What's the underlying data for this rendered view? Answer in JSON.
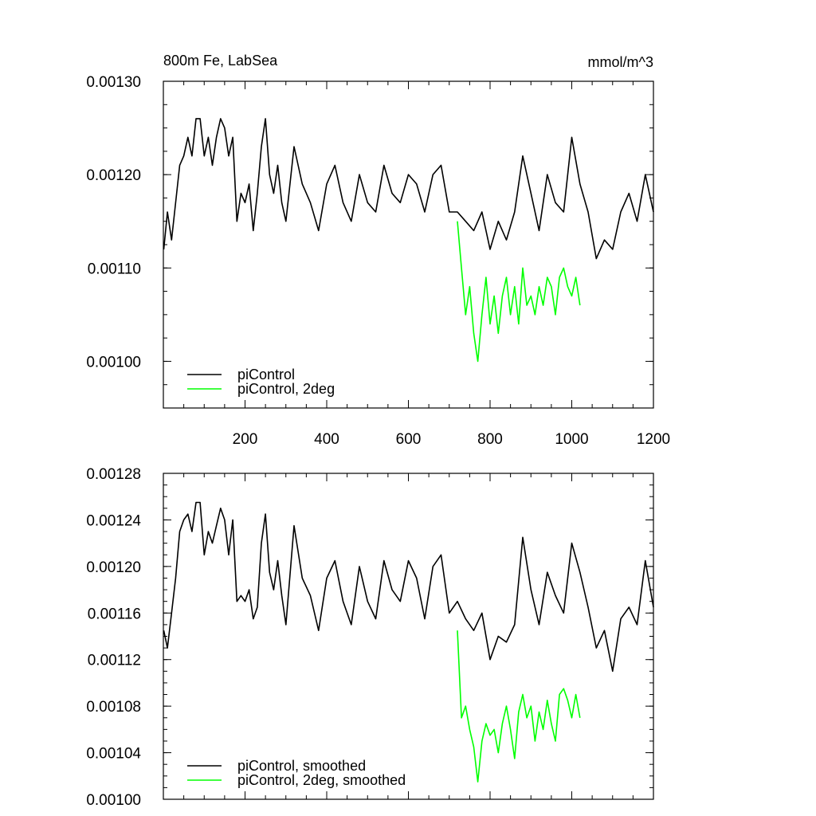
{
  "colors": {
    "control": "#000000",
    "twodeg": "#00ff00"
  },
  "chart_data": [
    {
      "type": "line",
      "title": "800m Fe, LabSea",
      "units": "mmol/m^3",
      "xlim": [
        0,
        1200
      ],
      "ylim": [
        0.00095,
        0.0013
      ],
      "x_ticks": [
        200,
        400,
        600,
        800,
        1000,
        1200
      ],
      "x_tick_labels": [
        "200",
        "400",
        "600",
        "800",
        "1000",
        "1200"
      ],
      "y_ticks": [
        0.001,
        0.0011,
        0.0012,
        0.0013
      ],
      "y_tick_labels": [
        "0.00100",
        "0.00110",
        "0.00120",
        "0.00130"
      ],
      "legend_position": "bottom-left",
      "series": [
        {
          "name": "piControl",
          "color": "#000000",
          "x": [
            1,
            10,
            20,
            30,
            40,
            50,
            60,
            70,
            80,
            90,
            100,
            110,
            120,
            130,
            140,
            150,
            160,
            170,
            180,
            190,
            200,
            210,
            220,
            230,
            240,
            250,
            260,
            270,
            280,
            290,
            300,
            320,
            340,
            360,
            380,
            400,
            420,
            440,
            460,
            480,
            500,
            520,
            540,
            560,
            580,
            600,
            620,
            640,
            660,
            680,
            700,
            720,
            740,
            760,
            780,
            800,
            820,
            840,
            860,
            880,
            900,
            920,
            940,
            960,
            980,
            1000,
            1020,
            1040,
            1060,
            1080,
            1100,
            1120,
            1140,
            1160,
            1180,
            1200
          ],
          "y": [
            0.00112,
            0.00116,
            0.00113,
            0.00117,
            0.00121,
            0.00122,
            0.00124,
            0.00122,
            0.00126,
            0.00126,
            0.00122,
            0.00124,
            0.00121,
            0.00124,
            0.00126,
            0.00125,
            0.00122,
            0.00124,
            0.00115,
            0.00118,
            0.00117,
            0.00119,
            0.00114,
            0.00118,
            0.00123,
            0.00126,
            0.0012,
            0.00118,
            0.00121,
            0.00117,
            0.00115,
            0.00123,
            0.00119,
            0.00117,
            0.00114,
            0.00119,
            0.00121,
            0.00117,
            0.00115,
            0.0012,
            0.00117,
            0.00116,
            0.00121,
            0.00118,
            0.00117,
            0.0012,
            0.00119,
            0.00116,
            0.0012,
            0.00121,
            0.00116,
            0.00116,
            0.00115,
            0.00114,
            0.00116,
            0.00112,
            0.00115,
            0.00113,
            0.00116,
            0.00122,
            0.00118,
            0.00114,
            0.0012,
            0.00117,
            0.00116,
            0.00124,
            0.00119,
            0.00116,
            0.00111,
            0.00113,
            0.00112,
            0.00116,
            0.00118,
            0.00115,
            0.0012,
            0.00116
          ]
        },
        {
          "name": "piControl, 2deg",
          "color": "#00ff00",
          "x": [
            720,
            730,
            740,
            750,
            760,
            770,
            780,
            790,
            800,
            810,
            820,
            830,
            840,
            850,
            860,
            870,
            880,
            890,
            900,
            910,
            920,
            930,
            940,
            950,
            960,
            970,
            980,
            990,
            1000,
            1010,
            1020
          ],
          "y": [
            0.00115,
            0.0011,
            0.00105,
            0.00108,
            0.00103,
            0.001,
            0.00105,
            0.00109,
            0.00104,
            0.00107,
            0.00103,
            0.00107,
            0.00109,
            0.00105,
            0.00108,
            0.00104,
            0.0011,
            0.00106,
            0.00107,
            0.00105,
            0.00108,
            0.00106,
            0.00109,
            0.00108,
            0.00105,
            0.00109,
            0.0011,
            0.00108,
            0.00107,
            0.00109,
            0.00106
          ]
        }
      ]
    },
    {
      "type": "line",
      "xlim": [
        0,
        1200
      ],
      "ylim": [
        0.001,
        0.00128
      ],
      "x_ticks": [
        200,
        400,
        600,
        800,
        1000,
        1200
      ],
      "y_ticks": [
        0.001,
        0.00104,
        0.00108,
        0.00112,
        0.00116,
        0.0012,
        0.00124,
        0.00128
      ],
      "y_tick_labels": [
        "0.00100",
        "0.00104",
        "0.00108",
        "0.00112",
        "0.00116",
        "0.00120",
        "0.00124",
        "0.00128"
      ],
      "legend_position": "bottom-left",
      "series": [
        {
          "name": "piControl, smoothed",
          "color": "#000000",
          "x": [
            1,
            10,
            20,
            30,
            40,
            50,
            60,
            70,
            80,
            90,
            100,
            110,
            120,
            130,
            140,
            150,
            160,
            170,
            180,
            190,
            200,
            210,
            220,
            230,
            240,
            250,
            260,
            270,
            280,
            290,
            300,
            320,
            340,
            360,
            380,
            400,
            420,
            440,
            460,
            480,
            500,
            520,
            540,
            560,
            580,
            600,
            620,
            640,
            660,
            680,
            700,
            720,
            740,
            760,
            780,
            800,
            820,
            840,
            860,
            880,
            900,
            920,
            940,
            960,
            980,
            1000,
            1020,
            1040,
            1060,
            1080,
            1100,
            1120,
            1140,
            1160,
            1180,
            1200
          ],
          "y": [
            0.001145,
            0.00113,
            0.00116,
            0.00119,
            0.00123,
            0.00124,
            0.001245,
            0.00123,
            0.001255,
            0.001255,
            0.00121,
            0.00123,
            0.00122,
            0.001235,
            0.00125,
            0.00124,
            0.00121,
            0.00124,
            0.00117,
            0.001175,
            0.00117,
            0.00118,
            0.001155,
            0.001165,
            0.00122,
            0.001245,
            0.001195,
            0.00118,
            0.001205,
            0.001175,
            0.00115,
            0.001235,
            0.00119,
            0.001175,
            0.001145,
            0.00119,
            0.001205,
            0.00117,
            0.00115,
            0.0012,
            0.00117,
            0.001155,
            0.001205,
            0.00118,
            0.00117,
            0.001205,
            0.00119,
            0.001155,
            0.0012,
            0.00121,
            0.00116,
            0.00117,
            0.001155,
            0.001145,
            0.00116,
            0.00112,
            0.00114,
            0.001135,
            0.00115,
            0.001225,
            0.00118,
            0.00115,
            0.001195,
            0.001175,
            0.00116,
            0.00122,
            0.001195,
            0.001165,
            0.00113,
            0.001145,
            0.00111,
            0.001155,
            0.001165,
            0.00115,
            0.001205,
            0.001165
          ]
        },
        {
          "name": "piControl, 2deg, smoothed",
          "color": "#00ff00",
          "x": [
            720,
            730,
            740,
            750,
            760,
            770,
            780,
            790,
            800,
            810,
            820,
            830,
            840,
            850,
            860,
            870,
            880,
            890,
            900,
            910,
            920,
            930,
            940,
            950,
            960,
            970,
            980,
            990,
            1000,
            1010,
            1020
          ],
          "y": [
            0.001145,
            0.00107,
            0.00108,
            0.00106,
            0.001045,
            0.001015,
            0.00105,
            0.001065,
            0.001055,
            0.00106,
            0.00104,
            0.001065,
            0.00108,
            0.00106,
            0.001035,
            0.001075,
            0.00109,
            0.00107,
            0.00108,
            0.00105,
            0.001075,
            0.00106,
            0.001085,
            0.001065,
            0.00105,
            0.00109,
            0.001095,
            0.001085,
            0.00107,
            0.00109,
            0.00107
          ]
        }
      ]
    }
  ]
}
